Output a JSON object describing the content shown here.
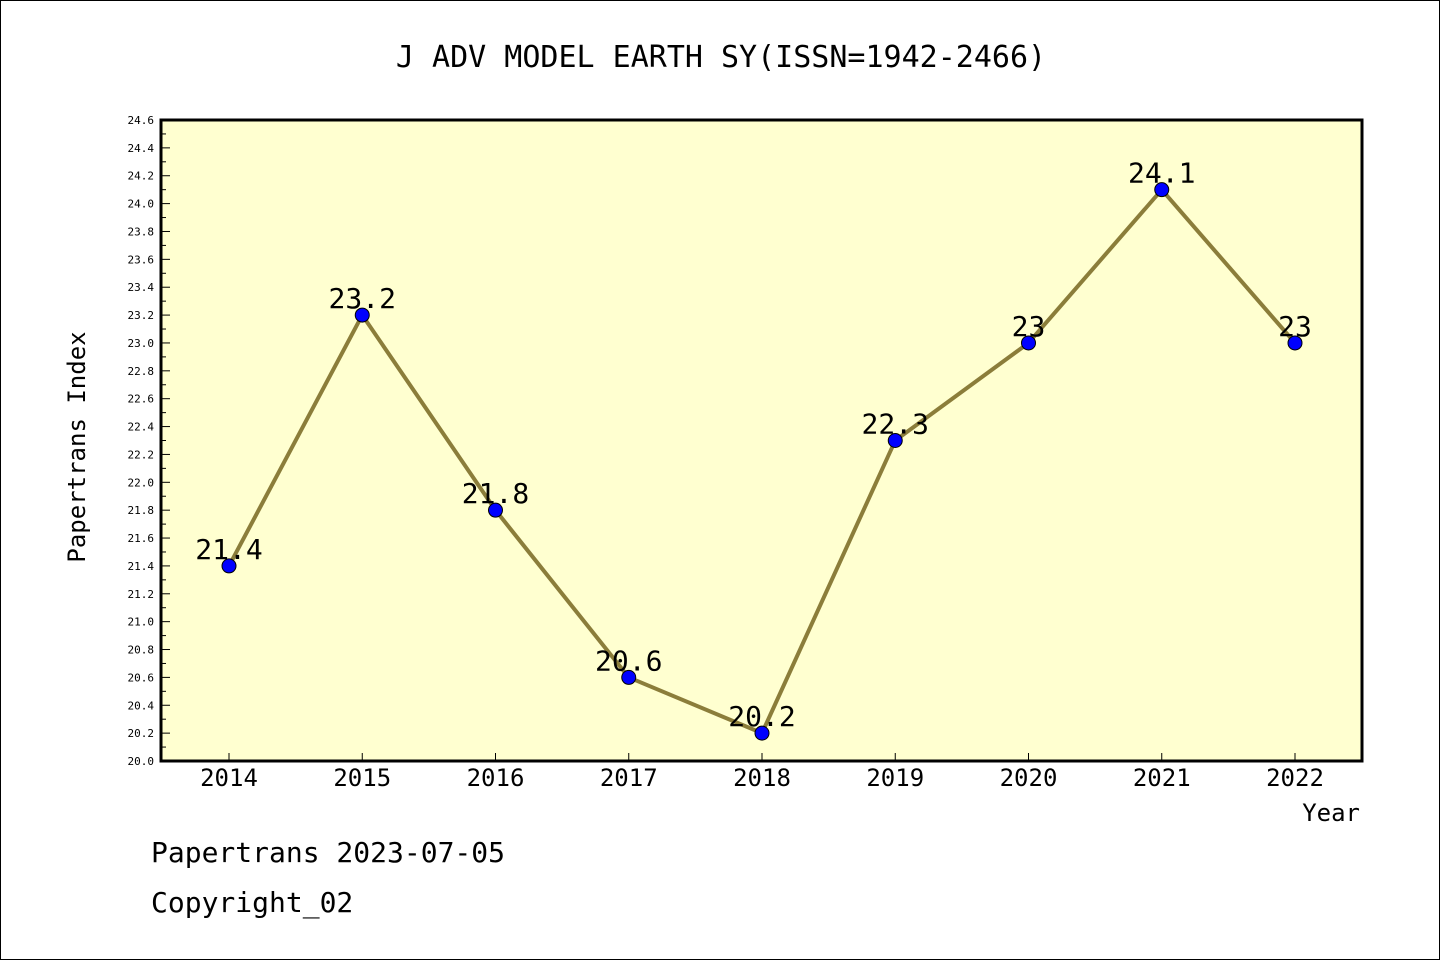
{
  "chart_data": {
    "type": "line",
    "title": "J ADV MODEL EARTH SY(ISSN=1942-2466)",
    "xlabel": "Year",
    "ylabel": "Papertrans Index",
    "categories": [
      "2014",
      "2015",
      "2016",
      "2017",
      "2018",
      "2019",
      "2020",
      "2021",
      "2022"
    ],
    "series": [
      {
        "values": [
          21.4,
          23.2,
          21.8,
          20.6,
          20.2,
          22.3,
          23.0,
          24.1,
          23.0
        ],
        "data_labels": [
          "21.4",
          "23.2",
          "21.8",
          "20.6",
          "20.2",
          "22.3",
          "23",
          "24.1",
          "23"
        ]
      }
    ],
    "ylim": [
      20.0,
      24.6
    ],
    "ytick_step": 0.2,
    "ytick_minor_step": 0.1,
    "grid": false,
    "colors": {
      "plot_background": "#ffffd0",
      "line": "#8b7d3a",
      "marker": "#0000ff"
    }
  },
  "footer": {
    "line1": "Papertrans 2023-07-05",
    "line2": "Copyright_02"
  }
}
